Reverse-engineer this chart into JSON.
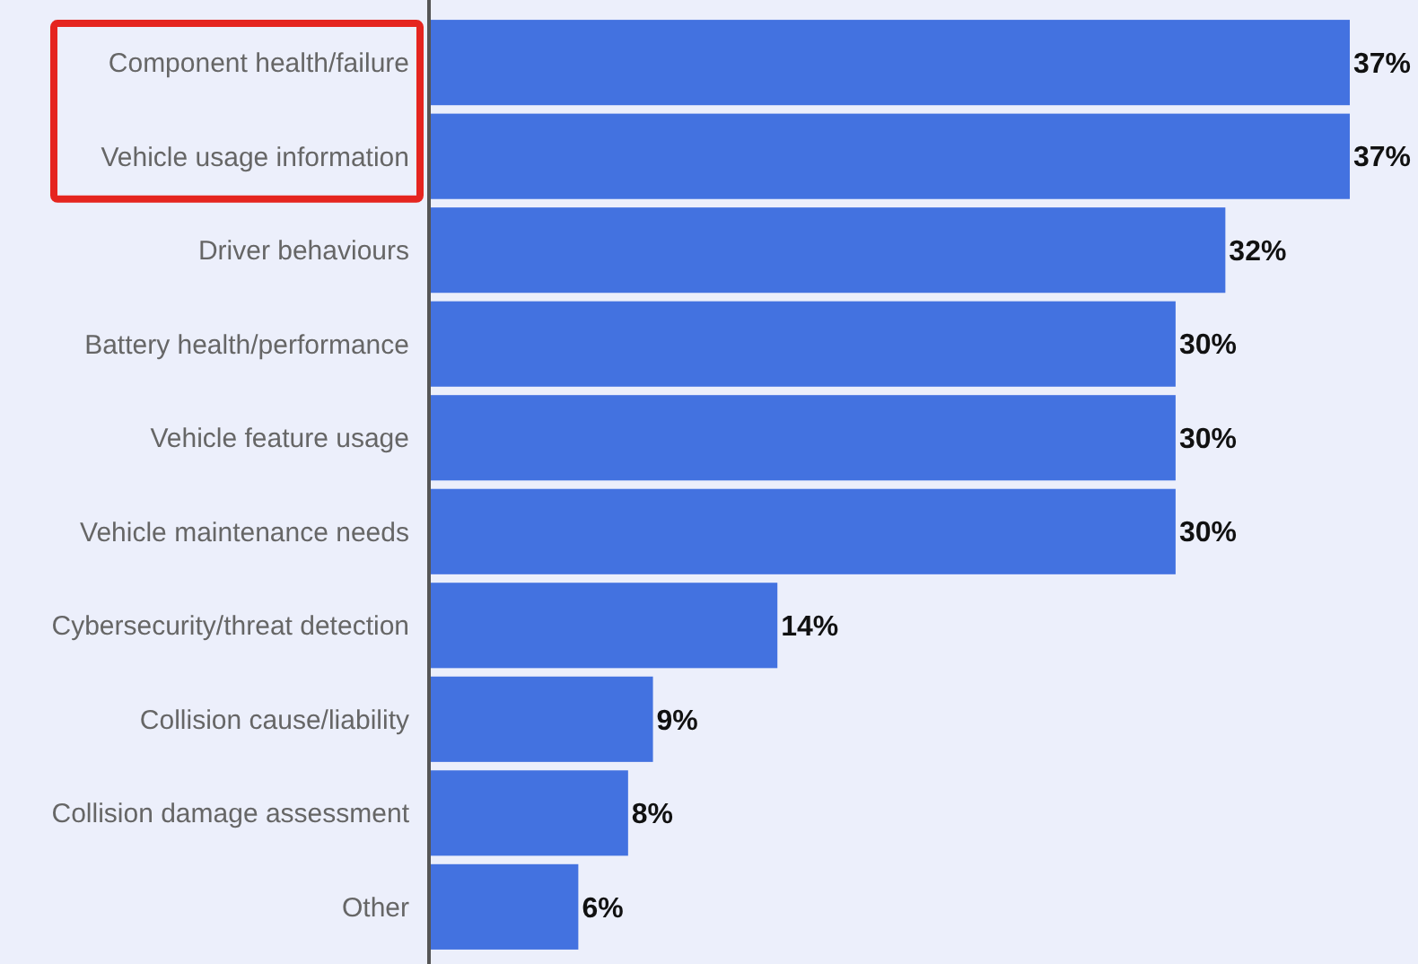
{
  "chart_data": {
    "type": "bar",
    "orientation": "horizontal",
    "categories": [
      "Component health/failure",
      "Vehicle usage information",
      "Driver behaviours",
      "Battery health/performance",
      "Vehicle feature usage",
      "Vehicle maintenance needs",
      "Cybersecurity/threat detection",
      "Collision cause/liability",
      "Collision damage assessment",
      "Other"
    ],
    "values": [
      37,
      37,
      32,
      30,
      30,
      30,
      14,
      9,
      8,
      6
    ],
    "value_labels": [
      "37%",
      "37%",
      "32%",
      "30%",
      "30%",
      "30%",
      "14%",
      "9%",
      "8%",
      "6%"
    ],
    "color": "#4372e0"
  }
}
